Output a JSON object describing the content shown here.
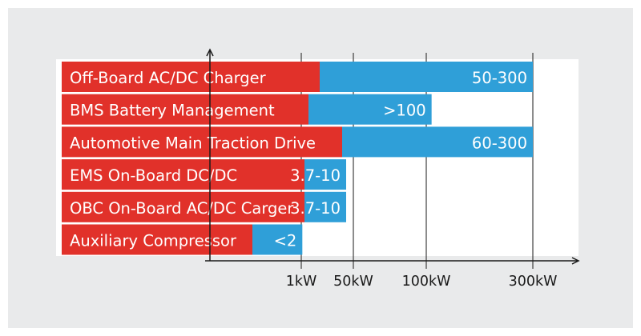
{
  "chart_data": {
    "type": "bar",
    "orientation": "horizontal",
    "stacked": true,
    "categories": [
      "Off-Board AC/DC Charger",
      "BMS Battery Management",
      "Automotive Main Traction Drive",
      "EMS On-Board DC/DC",
      "OBC On-Board AC/DC Carger",
      "Auxiliary Compressor"
    ],
    "range_labels": [
      "50-300",
      ">100",
      "60-300",
      "3.7-10",
      "3.7-10",
      "<2"
    ],
    "ranges_kw": [
      [
        50,
        300
      ],
      [
        100,
        110
      ],
      [
        60,
        300
      ],
      [
        3.7,
        10
      ],
      [
        3.7,
        10
      ],
      [
        0,
        2
      ]
    ],
    "x_ticks": [
      {
        "label": "1kW",
        "value": 1
      },
      {
        "label": "50kW",
        "value": 50
      },
      {
        "label": "100kW",
        "value": 100
      },
      {
        "label": "300kW",
        "value": 300
      }
    ],
    "grid": "vertical",
    "colors": {
      "label_bar": "#e1312a",
      "range_bar": "#2f9fd8",
      "panel": "#e9eaeb",
      "plot": "#ffffff",
      "axis": "#1a1a1a"
    }
  }
}
